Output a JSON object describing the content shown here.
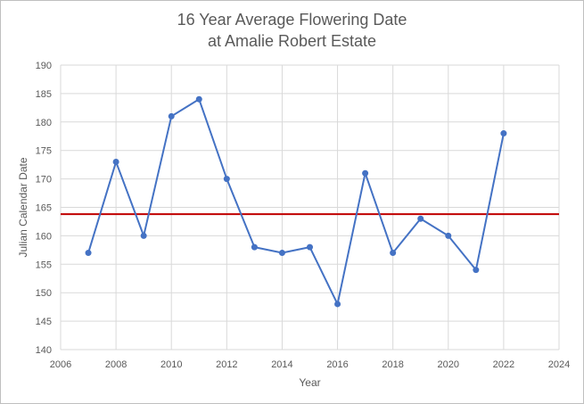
{
  "chart_data": {
    "type": "scatter",
    "mode": "lines+markers",
    "title": [
      "16 Year Average Flowering Date",
      "at Amalie Robert Estate"
    ],
    "xlabel": "Year",
    "ylabel": "Julian Calendar Date",
    "xlim": [
      2006,
      2024
    ],
    "ylim": [
      140,
      190
    ],
    "xticks": [
      2006,
      2008,
      2010,
      2012,
      2014,
      2016,
      2018,
      2020,
      2022,
      2024
    ],
    "yticks": [
      140,
      145,
      150,
      155,
      160,
      165,
      170,
      175,
      180,
      185,
      190
    ],
    "grid": true,
    "legend": "none",
    "series": [
      {
        "color": "#4472c4",
        "x": [
          2007,
          2008,
          2009,
          2010,
          2011,
          2012,
          2013,
          2014,
          2015,
          2016,
          2017,
          2018,
          2019,
          2020,
          2021,
          2022
        ],
        "y": [
          157,
          173,
          160,
          181,
          184,
          170,
          158,
          157,
          158,
          148,
          171,
          157,
          163,
          160,
          154,
          178
        ]
      }
    ],
    "reference_line": {
      "y": 163.8,
      "color": "#c00000"
    }
  }
}
